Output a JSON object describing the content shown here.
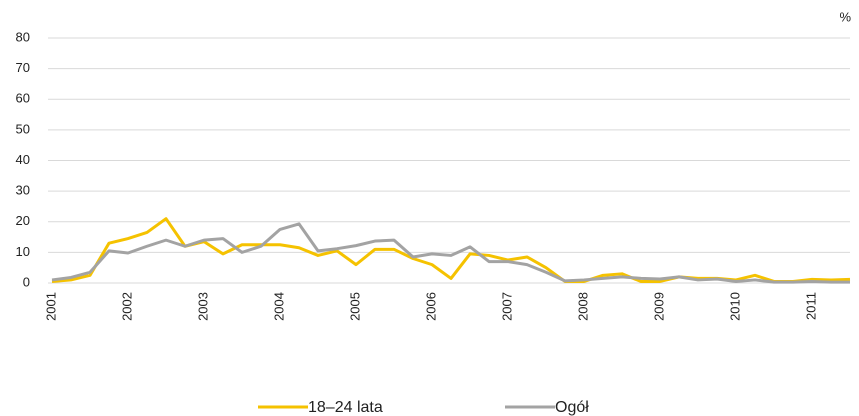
{
  "chart_data": {
    "type": "line",
    "unit_label": "%",
    "categories": [
      "2001",
      null,
      null,
      null,
      "2002",
      null,
      null,
      null,
      "2003",
      null,
      null,
      null,
      "2004",
      null,
      null,
      null,
      "2005",
      null,
      null,
      null,
      "2006",
      null,
      null,
      null,
      "2007",
      null,
      null,
      null,
      "2008",
      null,
      null,
      null,
      "2009",
      null,
      null,
      null,
      "2010",
      null,
      null,
      null,
      "2011",
      null,
      null
    ],
    "series": [
      {
        "name": "18–24 lata",
        "color": "#f5c200",
        "values": [
          0.5,
          1,
          2.5,
          13,
          14.5,
          16.5,
          21,
          12,
          13.5,
          9.5,
          12.5,
          12.5,
          12.5,
          11.5,
          9,
          10.5,
          6,
          11,
          11,
          8,
          6,
          1.5,
          9.5,
          9,
          7.5,
          8.5,
          5,
          0.5,
          0.5,
          2.5,
          3,
          0.5,
          0.5,
          2,
          1.5,
          1.5,
          1,
          2.5,
          0.5,
          0.5,
          1.2,
          1,
          1.2
        ]
      },
      {
        "name": "Ogół",
        "color": "#a3a3a3",
        "values": [
          1,
          1.8,
          3.5,
          10.5,
          9.8,
          12,
          14,
          12,
          14,
          14.5,
          10,
          12,
          17.5,
          19.3,
          10.5,
          11.2,
          12.2,
          13.7,
          14,
          8.5,
          9.5,
          9,
          11.8,
          7,
          7,
          6,
          3.5,
          0.7,
          1,
          1.5,
          2,
          1.5,
          1.3,
          2,
          1,
          1.3,
          0.5,
          1,
          0.3,
          0.3,
          0.5,
          0.3,
          0.3
        ]
      }
    ],
    "ylim": [
      0,
      80
    ],
    "yticks": [
      0,
      10,
      20,
      30,
      40,
      50,
      60,
      70,
      80
    ],
    "grid": true,
    "legend": "bottom"
  }
}
